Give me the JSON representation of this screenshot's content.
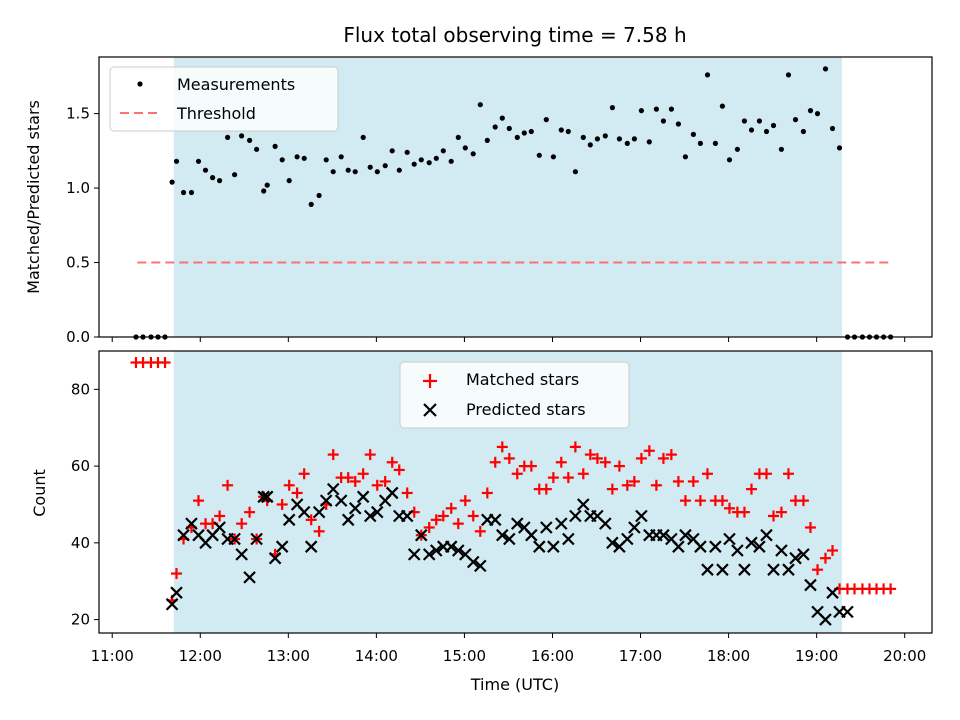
{
  "chart_data": [
    {
      "type": "scatter",
      "title": "Flux total observing time = 7.58 h",
      "ylabel": "Matched/Predicted stars",
      "xlabel": "",
      "ylim": [
        0,
        1.88
      ],
      "yticks": [
        0.0,
        0.5,
        1.0,
        1.5
      ],
      "ytick_labels": [
        "0.0",
        "0.5",
        "1.0",
        "1.5"
      ],
      "shaded_span": {
        "from": 11.7,
        "to": 19.28,
        "color": "#add8e6"
      },
      "series": [
        {
          "name": "Measurements",
          "marker": "dot",
          "color": "#000000",
          "x": [
            11.27,
            11.35,
            11.44,
            11.52,
            11.6,
            11.68,
            11.73,
            11.81,
            11.9,
            11.98,
            12.06,
            12.14,
            12.22,
            12.31,
            12.39,
            12.47,
            12.56,
            12.64,
            12.72,
            12.76,
            12.85,
            12.93,
            13.01,
            13.1,
            13.18,
            13.26,
            13.35,
            13.43,
            13.51,
            13.6,
            13.68,
            13.76,
            13.85,
            13.93,
            14.01,
            14.1,
            14.18,
            14.26,
            14.35,
            14.43,
            14.51,
            14.6,
            14.68,
            14.76,
            14.85,
            14.93,
            15.01,
            15.1,
            15.18,
            15.26,
            15.35,
            15.43,
            15.51,
            15.6,
            15.68,
            15.76,
            15.85,
            15.93,
            16.01,
            16.1,
            16.18,
            16.26,
            16.35,
            16.43,
            16.51,
            16.6,
            16.68,
            16.76,
            16.85,
            16.93,
            17.01,
            17.1,
            17.18,
            17.26,
            17.35,
            17.43,
            17.51,
            17.6,
            17.68,
            17.76,
            17.85,
            17.93,
            18.01,
            18.1,
            18.18,
            18.26,
            18.35,
            18.43,
            18.51,
            18.6,
            18.68,
            18.76,
            18.85,
            18.93,
            19.01,
            19.1,
            19.18,
            19.26,
            19.35,
            19.43,
            19.52,
            19.6,
            19.68,
            19.76,
            19.84
          ],
          "y": [
            0,
            0,
            0,
            0,
            0,
            1.04,
            1.18,
            0.97,
            0.97,
            1.18,
            1.12,
            1.07,
            1.05,
            1.34,
            1.09,
            1.35,
            1.32,
            1.26,
            0.98,
            1.02,
            1.28,
            1.19,
            1.05,
            1.21,
            1.2,
            0.89,
            0.95,
            1.19,
            1.11,
            1.21,
            1.12,
            1.11,
            1.34,
            1.14,
            1.11,
            1.15,
            1.25,
            1.12,
            1.24,
            1.16,
            1.19,
            1.17,
            1.2,
            1.25,
            1.18,
            1.34,
            1.27,
            1.23,
            1.56,
            1.32,
            1.41,
            1.47,
            1.4,
            1.34,
            1.37,
            1.38,
            1.22,
            1.46,
            1.21,
            1.39,
            1.38,
            1.11,
            1.34,
            1.29,
            1.33,
            1.35,
            1.54,
            1.33,
            1.3,
            1.33,
            1.52,
            1.31,
            1.53,
            1.45,
            1.53,
            1.43,
            1.21,
            1.36,
            1.3,
            1.76,
            1.3,
            1.55,
            1.19,
            1.26,
            1.45,
            1.39,
            1.45,
            1.38,
            1.42,
            1.26,
            1.76,
            1.46,
            1.38,
            1.52,
            1.5,
            1.8,
            1.4,
            1.27,
            0,
            0,
            0,
            0,
            0,
            0,
            0
          ]
        },
        {
          "name": "Threshold",
          "style": "dashed",
          "color": "#ff7070",
          "x": [
            11.27,
            19.84
          ],
          "y": [
            0.5,
            0.5
          ]
        }
      ],
      "legend_position": "upper-left"
    },
    {
      "type": "scatter",
      "title": "",
      "xlabel": "Time (UTC)",
      "ylabel": "Count",
      "xlim": [
        10.85,
        20.31
      ],
      "ylim": [
        16.5,
        90
      ],
      "xticks": [
        11,
        12,
        13,
        14,
        15,
        16,
        17,
        18,
        19,
        20
      ],
      "xtick_labels": [
        "11:00",
        "12:00",
        "13:00",
        "14:00",
        "15:00",
        "16:00",
        "17:00",
        "18:00",
        "19:00",
        "20:00"
      ],
      "yticks": [
        20,
        40,
        60,
        80
      ],
      "ytick_labels": [
        "20",
        "40",
        "60",
        "80"
      ],
      "shaded_span": {
        "from": 11.7,
        "to": 19.28,
        "color": "#add8e6"
      },
      "series": [
        {
          "name": "Matched stars",
          "marker": "plus",
          "color": "#ff0000",
          "x": [
            11.27,
            11.35,
            11.44,
            11.52,
            11.6,
            11.68,
            11.73,
            11.81,
            11.9,
            11.98,
            12.06,
            12.14,
            12.22,
            12.31,
            12.39,
            12.47,
            12.56,
            12.64,
            12.72,
            12.76,
            12.85,
            12.93,
            13.01,
            13.1,
            13.18,
            13.26,
            13.35,
            13.43,
            13.51,
            13.6,
            13.68,
            13.76,
            13.85,
            13.93,
            14.01,
            14.1,
            14.18,
            14.26,
            14.35,
            14.43,
            14.51,
            14.6,
            14.68,
            14.76,
            14.85,
            14.93,
            15.01,
            15.1,
            15.18,
            15.26,
            15.35,
            15.43,
            15.51,
            15.6,
            15.68,
            15.76,
            15.85,
            15.93,
            16.01,
            16.1,
            16.18,
            16.26,
            16.35,
            16.43,
            16.51,
            16.6,
            16.68,
            16.76,
            16.85,
            16.93,
            17.01,
            17.1,
            17.18,
            17.26,
            17.35,
            17.43,
            17.51,
            17.6,
            17.68,
            17.76,
            17.85,
            17.93,
            18.01,
            18.1,
            18.18,
            18.26,
            18.35,
            18.43,
            18.51,
            18.6,
            18.68,
            18.76,
            18.85,
            18.93,
            19.01,
            19.1,
            19.18,
            19.26,
            19.35,
            19.43,
            19.52,
            19.6,
            19.68,
            19.76,
            19.84
          ],
          "y": [
            87,
            87,
            87,
            87,
            87,
            25,
            32,
            41,
            44,
            51,
            45,
            45,
            47,
            55,
            41,
            45,
            48,
            41,
            52,
            51,
            37,
            50,
            55,
            53,
            58,
            46,
            43,
            50,
            63,
            57,
            57,
            56,
            58,
            63,
            55,
            56,
            61,
            59,
            53,
            48,
            42,
            44,
            46,
            47,
            49,
            45,
            51,
            47,
            43,
            53,
            61,
            65,
            62,
            58,
            60,
            60,
            54,
            54,
            57,
            61,
            57,
            65,
            58,
            63,
            62,
            61,
            54,
            60,
            55,
            56,
            62,
            64,
            55,
            62,
            63,
            56,
            51,
            56,
            51,
            58,
            51,
            51,
            49,
            48,
            48,
            54,
            58,
            58,
            47,
            48,
            58,
            51,
            51,
            44,
            33,
            36,
            38,
            28,
            28,
            28,
            28,
            28,
            28,
            28,
            28
          ]
        },
        {
          "name": "Predicted stars",
          "marker": "x",
          "color": "#000000",
          "x": [
            11.68,
            11.73,
            11.81,
            11.9,
            11.98,
            12.06,
            12.14,
            12.22,
            12.31,
            12.39,
            12.47,
            12.56,
            12.64,
            12.72,
            12.76,
            12.85,
            12.93,
            13.01,
            13.1,
            13.18,
            13.26,
            13.35,
            13.43,
            13.51,
            13.6,
            13.68,
            13.76,
            13.85,
            13.93,
            14.01,
            14.1,
            14.18,
            14.26,
            14.35,
            14.43,
            14.51,
            14.6,
            14.68,
            14.76,
            14.85,
            14.93,
            15.01,
            15.1,
            15.18,
            15.26,
            15.35,
            15.43,
            15.51,
            15.6,
            15.68,
            15.76,
            15.85,
            15.93,
            16.01,
            16.1,
            16.18,
            16.26,
            16.35,
            16.43,
            16.51,
            16.6,
            16.68,
            16.76,
            16.85,
            16.93,
            17.01,
            17.1,
            17.18,
            17.26,
            17.35,
            17.43,
            17.51,
            17.6,
            17.68,
            17.76,
            17.85,
            17.93,
            18.01,
            18.1,
            18.18,
            18.26,
            18.35,
            18.43,
            18.51,
            18.6,
            18.68,
            18.76,
            18.85,
            18.93,
            19.01,
            19.1,
            19.18,
            19.26,
            19.35
          ],
          "y": [
            24,
            27,
            42,
            45,
            42,
            40,
            42,
            44,
            41,
            41,
            37,
            31,
            41,
            52,
            52,
            36,
            39,
            46,
            50,
            48,
            39,
            48,
            51,
            54,
            51,
            46,
            49,
            52,
            47,
            48,
            51,
            53,
            47,
            47,
            37,
            42,
            37,
            38,
            39,
            39,
            38,
            37,
            35,
            34,
            46,
            46,
            42,
            41,
            45,
            44,
            42,
            39,
            44,
            39,
            45,
            41,
            47,
            50,
            47,
            47,
            45,
            40,
            39,
            41,
            44,
            47,
            42,
            42,
            42,
            41,
            39,
            42,
            41,
            39,
            33,
            39,
            33,
            41,
            38,
            33,
            40,
            39,
            42,
            33,
            38,
            33,
            36,
            37,
            29,
            22,
            20,
            27,
            22,
            22
          ]
        }
      ],
      "legend_position": "upper-center"
    }
  ]
}
